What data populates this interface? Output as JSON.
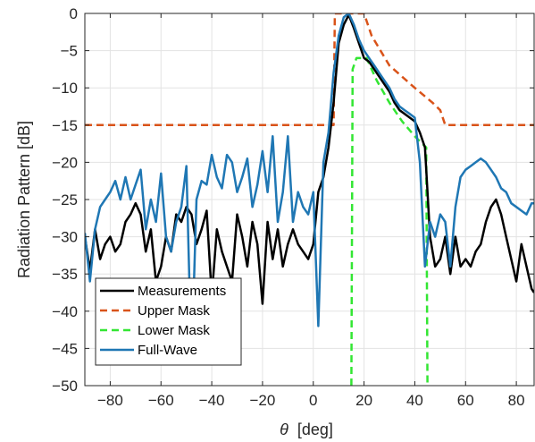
{
  "chart_data": {
    "type": "line",
    "xlabel_symbol": "θ",
    "xlabel_unit": "[deg]",
    "ylabel": "Radiation Pattern [dB]",
    "xlim": [
      -90,
      87
    ],
    "ylim": [
      -50,
      0
    ],
    "xticks": [
      -80,
      -60,
      -40,
      -20,
      0,
      20,
      40,
      60,
      80
    ],
    "xtick_labels": [
      "−80",
      "−60",
      "−40",
      "−20",
      "0",
      "20",
      "40",
      "60",
      "80"
    ],
    "yticks": [
      0,
      -5,
      -10,
      -15,
      -20,
      -25,
      -30,
      -35,
      -40,
      -45,
      -50
    ],
    "ytick_labels": [
      "0",
      "−5",
      "−10",
      "−15",
      "−20",
      "−25",
      "−30",
      "−35",
      "−40",
      "−45",
      "−50"
    ],
    "grid": true,
    "legend_position": "bottom-left",
    "colors": {
      "measurements": "#000000",
      "upper_mask": "#D95319",
      "lower_mask": "#33E633",
      "full_wave": "#1F77B4",
      "grid": "#E3E3E3",
      "axis": "#262626"
    },
    "series": [
      {
        "name": "Measurements",
        "style": "solid",
        "x": [
          -90,
          -88,
          -86,
          -84,
          -82,
          -80,
          -78,
          -76,
          -74,
          -72,
          -70,
          -68,
          -66,
          -64,
          -62,
          -60,
          -58,
          -56,
          -54,
          -52,
          -50,
          -48,
          -46,
          -44,
          -42,
          -40,
          -38,
          -36,
          -34,
          -32,
          -30,
          -28,
          -26,
          -24,
          -22,
          -20,
          -18,
          -16,
          -14,
          -12,
          -10,
          -8,
          -6,
          -4,
          -2,
          0,
          2,
          4,
          6,
          8,
          10,
          12,
          14,
          16,
          18,
          20,
          22,
          24,
          26,
          28,
          30,
          32,
          34,
          36,
          38,
          40,
          42,
          44,
          46,
          48,
          50,
          52,
          54,
          56,
          58,
          60,
          62,
          64,
          66,
          68,
          70,
          72,
          74,
          76,
          78,
          80,
          82,
          84,
          86,
          87
        ],
        "y": [
          -30,
          -34.5,
          -29,
          -33,
          -31,
          -30,
          -32,
          -31,
          -28,
          -27,
          -25.5,
          -27,
          -32,
          -29,
          -36,
          -34,
          -30,
          -32,
          -27,
          -28,
          -26,
          -27,
          -31,
          -29,
          -26.5,
          -38,
          -29,
          -32,
          -34,
          -36,
          -27,
          -30,
          -34,
          -28,
          -31,
          -39,
          -28,
          -33,
          -29,
          -34,
          -31,
          -29,
          -31,
          -32,
          -33,
          -31,
          -24,
          -22,
          -18,
          -12,
          -4,
          -1.5,
          -0.2,
          -2,
          -4,
          -6,
          -6.5,
          -7.5,
          -8.5,
          -9.5,
          -10.5,
          -12,
          -13,
          -13.5,
          -14,
          -14.5,
          -16,
          -18,
          -30,
          -34,
          -33,
          -30,
          -35,
          -30,
          -34,
          -33,
          -34,
          -32,
          -31,
          -28,
          -26,
          -25,
          -27,
          -30,
          -33,
          -36,
          -31,
          -34,
          -37,
          -37.5
        ]
      },
      {
        "name": "Upper Mask",
        "style": "dashed",
        "x": [
          -90,
          8,
          8.5,
          20,
          23,
          30,
          40,
          47,
          50,
          52,
          87
        ],
        "y": [
          -15,
          -15,
          0,
          0,
          -3,
          -7,
          -10,
          -12,
          -13,
          -15,
          -15
        ]
      },
      {
        "name": "Lower Mask",
        "style": "dashed",
        "x": [
          15,
          15.5,
          17,
          21,
          25,
          30,
          35,
          40,
          44.5,
          45
        ],
        "y": [
          -50,
          -7.5,
          -6,
          -6,
          -9,
          -12,
          -14.5,
          -16.5,
          -18,
          -50
        ]
      },
      {
        "name": "Full-Wave",
        "style": "solid",
        "x": [
          -90,
          -88,
          -86,
          -84,
          -82,
          -80,
          -78,
          -76,
          -74,
          -72,
          -70,
          -68,
          -66,
          -64,
          -62,
          -60,
          -58,
          -56,
          -54,
          -52,
          -50,
          -48,
          -46,
          -44,
          -42,
          -40,
          -38,
          -36,
          -34,
          -32,
          -30,
          -28,
          -26,
          -24,
          -22,
          -20,
          -18,
          -16,
          -14,
          -12,
          -10,
          -8,
          -6,
          -4,
          -2,
          0,
          2,
          4,
          6,
          8,
          10,
          12,
          14,
          16,
          18,
          20,
          22,
          24,
          26,
          28,
          30,
          32,
          34,
          36,
          38,
          40,
          42,
          44,
          46,
          48,
          50,
          52,
          54,
          56,
          58,
          60,
          62,
          64,
          66,
          68,
          70,
          72,
          74,
          76,
          78,
          80,
          82,
          84,
          86,
          87
        ],
        "y": [
          -29.5,
          -36,
          -29,
          -26,
          -25,
          -24,
          -22.5,
          -25,
          -22,
          -25,
          -23,
          -21,
          -29,
          -25,
          -28,
          -21.5,
          -30,
          -32,
          -28,
          -26,
          -20.5,
          -47,
          -25,
          -22.5,
          -23,
          -19,
          -22,
          -23.5,
          -19,
          -20,
          -24,
          -22,
          -19.5,
          -26,
          -23,
          -18.5,
          -24,
          -16.5,
          -28,
          -24,
          -16.5,
          -28,
          -24,
          -26,
          -27,
          -24,
          -42,
          -20,
          -16,
          -8,
          -3,
          -0.5,
          0,
          -1.5,
          -3.5,
          -5,
          -6,
          -7,
          -8,
          -9,
          -10,
          -11.5,
          -12.5,
          -13,
          -13.5,
          -14,
          -20,
          -34,
          -28,
          -30,
          -27,
          -28,
          -34,
          -26,
          -22,
          -21,
          -20.5,
          -20,
          -19.5,
          -20,
          -21,
          -22,
          -23.5,
          -24,
          -25.5,
          -26,
          -26.5,
          -27,
          -25.5,
          -25.5
        ]
      }
    ]
  }
}
